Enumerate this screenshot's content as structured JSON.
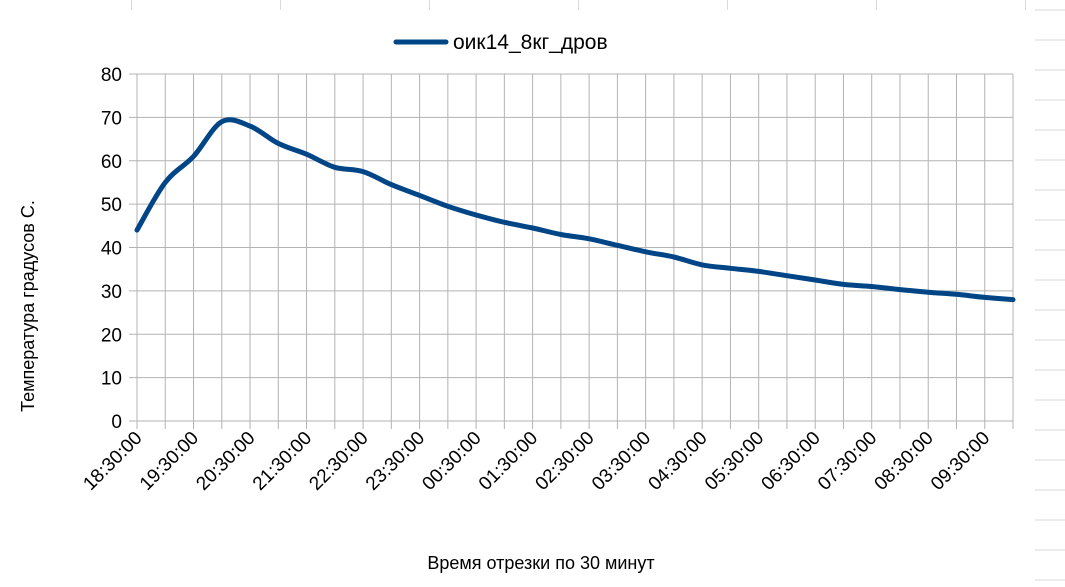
{
  "sheet": {
    "grid_color": "#d9d9d9"
  },
  "chart_data": {
    "type": "line",
    "title": "",
    "xlabel": "Время отрезки по 30 минут",
    "ylabel": "Температура градусов С.",
    "ylim": [
      0,
      80
    ],
    "yticks": [
      0,
      10,
      20,
      30,
      40,
      50,
      60,
      70,
      80
    ],
    "grid": true,
    "legend_position": "top",
    "categories": [
      "18:30:00",
      "19:00:00",
      "19:30:00",
      "20:00:00",
      "20:30:00",
      "21:00:00",
      "21:30:00",
      "22:00:00",
      "22:30:00",
      "23:00:00",
      "23:30:00",
      "00:00:00",
      "00:30:00",
      "01:00:00",
      "01:30:00",
      "02:00:00",
      "02:30:00",
      "03:00:00",
      "03:30:00",
      "04:00:00",
      "04:30:00",
      "05:00:00",
      "05:30:00",
      "06:00:00",
      "06:30:00",
      "07:00:00",
      "07:30:00",
      "08:00:00",
      "08:30:00",
      "09:00:00",
      "09:30:00",
      "10:00:00"
    ],
    "tick_labels": [
      "18:30:00",
      "19:30:00",
      "20:30:00",
      "21:30:00",
      "22:30:00",
      "23:30:00",
      "00:30:00",
      "01:30:00",
      "02:30:00",
      "03:30:00",
      "04:30:00",
      "05:30:00",
      "06:30:00",
      "07:30:00",
      "08:30:00",
      "09:30:00"
    ],
    "series": [
      {
        "name": "оик14_8кг_дров",
        "color": "#004586",
        "values": [
          44,
          55,
          61,
          69,
          68,
          64,
          61.5,
          58.5,
          57.5,
          54.5,
          52,
          49.5,
          47.5,
          45.8,
          44.5,
          43,
          42,
          40.5,
          39,
          37.8,
          36,
          35.2,
          34.5,
          33.5,
          32.5,
          31.5,
          31,
          30.3,
          29.7,
          29.2,
          28.5,
          28
        ]
      }
    ]
  }
}
